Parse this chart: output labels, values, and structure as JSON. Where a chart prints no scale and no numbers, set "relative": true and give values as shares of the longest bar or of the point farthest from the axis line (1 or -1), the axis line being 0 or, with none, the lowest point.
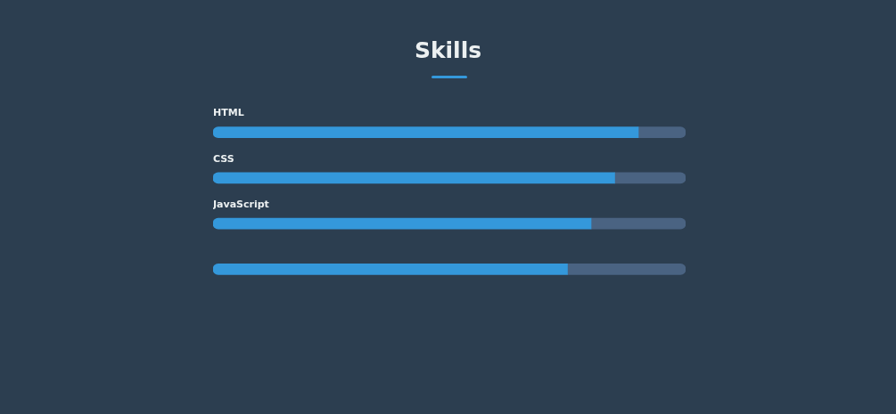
{
  "chart_data": {
    "type": "bar",
    "title": "Skills",
    "orientation": "horizontal",
    "relative": true,
    "stacked": true,
    "categories": [
      "HTML",
      "CSS",
      "JavaScript",
      null
    ],
    "series": [
      {
        "color": "#3498db",
        "values": [
          0.9,
          0.85,
          0.8,
          0.75
        ]
      },
      {
        "color": "#4a6382",
        "values": [
          0.1,
          0.15,
          0.2,
          0.25
        ]
      }
    ]
  }
}
